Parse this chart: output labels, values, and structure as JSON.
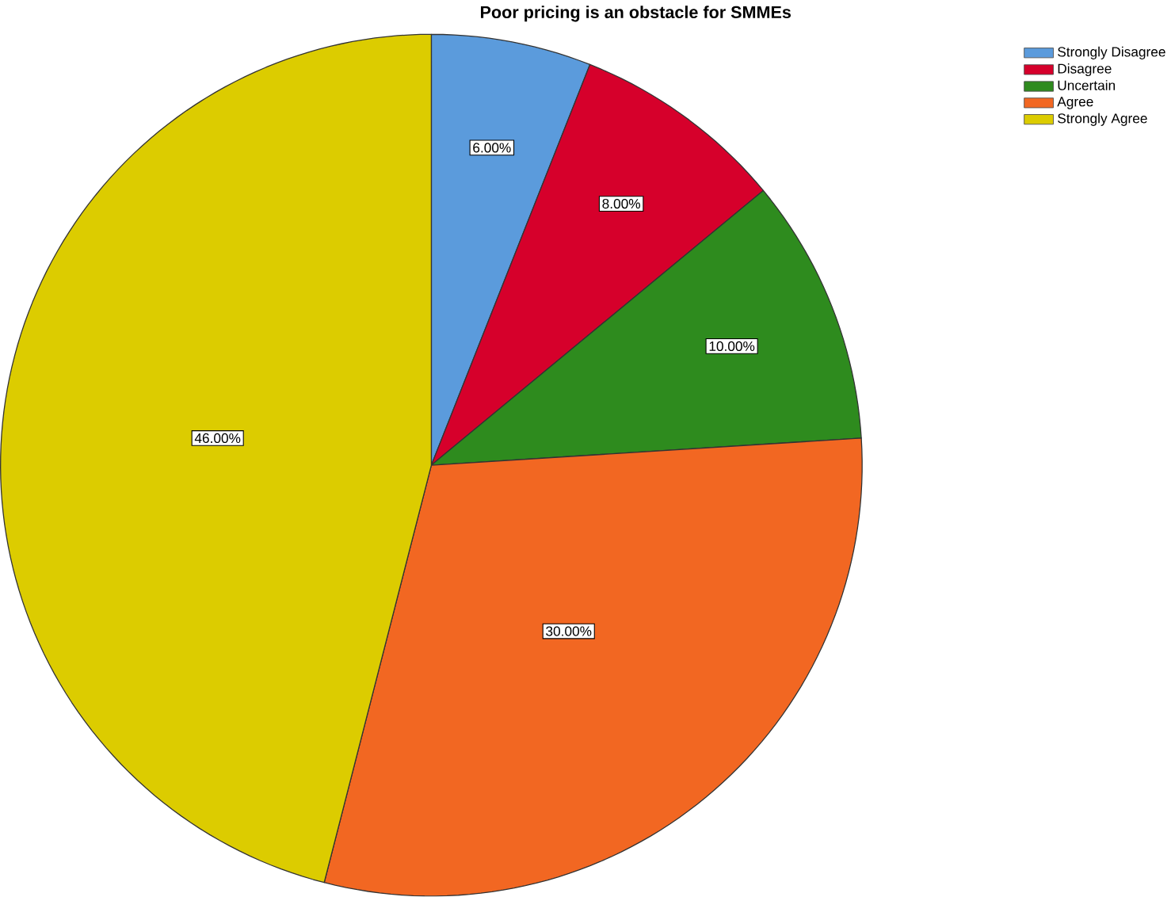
{
  "chart_data": {
    "type": "pie",
    "title": "Poor pricing is an obstacle for SMMEs",
    "categories": [
      "Strongly Disagree",
      "Disagree",
      "Uncertain",
      "Agree",
      "Strongly Agree"
    ],
    "values": [
      6,
      8,
      10,
      30,
      46
    ],
    "value_labels": [
      "6.00%",
      "8.00%",
      "10.00%",
      "30.00%",
      "46.00%"
    ],
    "colors": [
      "#5b9bdc",
      "#d6002b",
      "#2e8b1e",
      "#f26722",
      "#dccc00"
    ],
    "legend": "top right"
  }
}
